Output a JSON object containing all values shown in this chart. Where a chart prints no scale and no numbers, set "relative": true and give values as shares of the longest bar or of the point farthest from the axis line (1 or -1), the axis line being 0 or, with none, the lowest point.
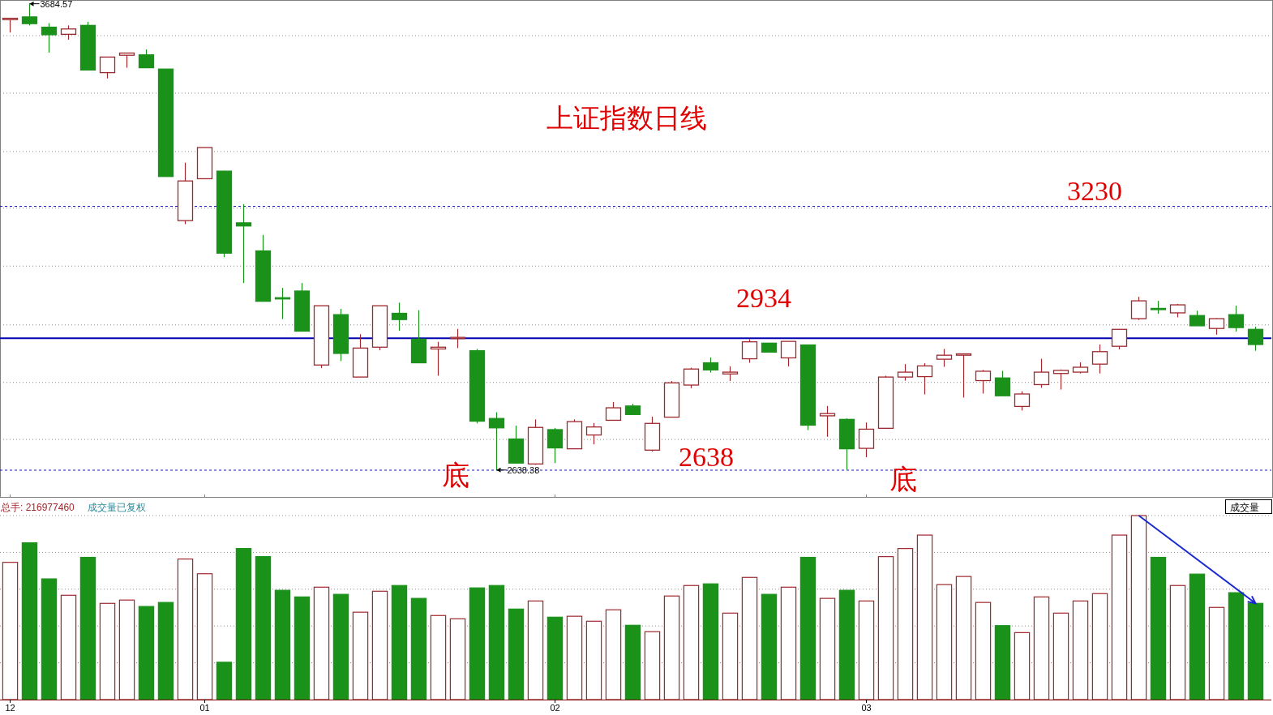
{
  "chart_data": [
    {
      "type": "candlestick",
      "title": "上证指数日线",
      "tick_labels": false,
      "grid": "y",
      "categories": [
        "12",
        null,
        null,
        null,
        null,
        null,
        null,
        null,
        null,
        null,
        "01",
        null,
        null,
        null,
        null,
        null,
        null,
        null,
        null,
        null,
        null,
        null,
        null,
        null,
        null,
        null,
        null,
        null,
        "02",
        null,
        null,
        null,
        null,
        null,
        null,
        null,
        null,
        null,
        null,
        null,
        null,
        null,
        null,
        null,
        "03",
        null,
        null,
        null,
        null,
        null,
        null,
        null,
        null,
        null,
        null,
        null,
        null,
        null,
        null,
        null,
        null,
        null,
        null,
        null,
        null
      ],
      "ohlc": [
        [
          3649,
          3653,
          3620,
          3652
        ],
        [
          3655,
          3684.57,
          3636,
          3640
        ],
        [
          3632,
          3641,
          3575,
          3615
        ],
        [
          3616,
          3636,
          3604,
          3628
        ],
        [
          3636,
          3644,
          3535,
          3536
        ],
        [
          3530,
          3565,
          3517,
          3565
        ],
        [
          3569,
          3574,
          3541,
          3574
        ],
        [
          3570,
          3582,
          3541,
          3541
        ],
        [
          3538,
          3538,
          3297,
          3297
        ],
        [
          3198,
          3328,
          3190,
          3287
        ],
        [
          3292,
          3362,
          3292,
          3362
        ],
        [
          3309,
          3309,
          3116,
          3125
        ],
        [
          3193,
          3235,
          3058,
          3186
        ],
        [
          3130,
          3166,
          3017,
          3017
        ],
        [
          3025,
          3047,
          2977,
          3024
        ],
        [
          3040,
          3058,
          2950,
          2950
        ],
        [
          2874,
          3007,
          2867,
          3007
        ],
        [
          2987,
          3000,
          2883,
          2900
        ],
        [
          2847,
          2943,
          2847,
          2912
        ],
        [
          2914,
          3007,
          2907,
          3007
        ],
        [
          2990,
          3014,
          2951,
          2976
        ],
        [
          2932,
          2997,
          2879,
          2879
        ],
        [
          2910,
          2926,
          2850,
          2914
        ],
        [
          2935,
          2955,
          2912,
          2936
        ],
        [
          2906,
          2910,
          2743,
          2748
        ],
        [
          2754,
          2768,
          2638.38,
          2733
        ],
        [
          2708,
          2738,
          2653,
          2654
        ],
        [
          2652,
          2752,
          2650,
          2734
        ],
        [
          2729,
          2733,
          2654,
          2688
        ],
        [
          2686,
          2752,
          2686,
          2747
        ],
        [
          2717,
          2744,
          2696,
          2735
        ],
        [
          2750,
          2791,
          2750,
          2778
        ],
        [
          2782,
          2787,
          2763,
          2763
        ],
        [
          2683,
          2758,
          2680,
          2743
        ],
        [
          2757,
          2838,
          2757,
          2834
        ],
        [
          2829,
          2868,
          2822,
          2865
        ],
        [
          2879,
          2891,
          2857,
          2863
        ],
        [
          2854,
          2871,
          2838,
          2858
        ],
        [
          2888,
          2932,
          2879,
          2926
        ],
        [
          2923,
          2923,
          2903,
          2903
        ],
        [
          2890,
          2927,
          2871,
          2927
        ],
        [
          2919,
          2919,
          2728,
          2739
        ],
        [
          2760,
          2782,
          2713,
          2765
        ],
        [
          2752,
          2754,
          2639,
          2686
        ],
        [
          2687,
          2745,
          2667,
          2730
        ],
        [
          2732,
          2850,
          2732,
          2847
        ],
        [
          2847,
          2876,
          2839,
          2858
        ],
        [
          2848,
          2878,
          2808,
          2872
        ],
        [
          2887,
          2910,
          2870,
          2896
        ],
        [
          2896,
          2900,
          2801,
          2899
        ],
        [
          2839,
          2863,
          2810,
          2860
        ],
        [
          2845,
          2861,
          2805,
          2805
        ],
        [
          2781,
          2815,
          2772,
          2809
        ],
        [
          2830,
          2888,
          2823,
          2858
        ],
        [
          2855,
          2864,
          2819,
          2862
        ],
        [
          2858,
          2880,
          2855,
          2869
        ],
        [
          2876,
          2920,
          2855,
          2904
        ],
        [
          2916,
          2954,
          2909,
          2954
        ],
        [
          2978,
          3027,
          2975,
          3018
        ],
        [
          3001,
          3018,
          2989,
          3000
        ],
        [
          2991,
          3011,
          2981,
          3009
        ],
        [
          2985,
          2996,
          2962,
          2962
        ],
        [
          2956,
          2979,
          2942,
          2978
        ],
        [
          2987,
          3007,
          2949,
          2958
        ],
        [
          2954,
          2960,
          2906,
          2920
        ]
      ],
      "colors": [
        "#a0282d",
        "#1a921a",
        "#1a921a",
        "#a0282d",
        "#1a921a",
        "#a0282d",
        "#a0282d",
        "#1a921a",
        "#1a921a",
        "#a0282d",
        "#a0282d",
        "#1a921a",
        "#1a921a",
        "#1a921a",
        "#1a921a",
        "#1a921a",
        "#a0282d",
        "#1a921a",
        "#a0282d",
        "#a0282d",
        "#1a921a",
        "#1a921a",
        "#a0282d",
        "#a0282d",
        "#1a921a",
        "#1a921a",
        "#1a921a",
        "#a0282d",
        "#1a921a",
        "#a0282d",
        "#a0282d",
        "#a0282d",
        "#1a921a",
        "#a0282d",
        "#a0282d",
        "#a0282d",
        "#1a921a",
        "#a0282d",
        "#a0282d",
        "#1a921a",
        "#a0282d",
        "#1a921a",
        "#a0282d",
        "#1a921a",
        "#a0282d",
        "#a0282d",
        "#a0282d",
        "#a0282d",
        "#a0282d",
        "#a0282d",
        "#a0282d",
        "#1a921a",
        "#a0282d",
        "#a0282d",
        "#a0282d",
        "#a0282d",
        "#a0282d",
        "#a0282d",
        "#a0282d",
        "#1a921a",
        "#a0282d",
        "#1a921a",
        "#a0282d",
        "#1a921a",
        "#1a921a"
      ],
      "ylim": [
        2578,
        3693
      ],
      "yticks": [
        {
          "value": 3613,
          "label": null
        },
        {
          "value": 3484,
          "label": null
        },
        {
          "value": 3353,
          "label": null
        },
        {
          "value": 3226,
          "label": null
        },
        {
          "value": 3096,
          "label": null
        },
        {
          "value": 2964,
          "label": null
        },
        {
          "value": 2835,
          "label": null
        },
        {
          "value": 2707,
          "label": null
        }
      ],
      "ref_lines": [
        {
          "axis": "y",
          "value": 3230,
          "label": "3230",
          "color": "#1c1ca8",
          "line_style": "dashed"
        },
        {
          "axis": "y",
          "value": 2934,
          "label": "2934",
          "color": "#0000b0",
          "line_style": "solid"
        },
        {
          "axis": "y",
          "value": 2638,
          "label": "2638",
          "color": "#1c1ca8",
          "line_style": "dashed"
        }
      ],
      "annotations": [
        "3684.57",
        "2638.38",
        "底",
        "底"
      ]
    },
    {
      "type": "bar",
      "relative": true,
      "grid": "y",
      "categories": [
        "12",
        null,
        null,
        null,
        null,
        null,
        null,
        null,
        null,
        null,
        "01",
        null,
        null,
        null,
        null,
        null,
        null,
        null,
        null,
        null,
        null,
        null,
        null,
        null,
        null,
        null,
        null,
        null,
        "02",
        null,
        null,
        null,
        null,
        null,
        null,
        null,
        null,
        null,
        null,
        null,
        null,
        null,
        null,
        null,
        "03",
        null,
        null,
        null,
        null,
        null,
        null,
        null,
        null,
        null,
        null,
        null,
        null,
        null,
        null,
        null,
        null,
        null,
        null,
        null,
        null
      ],
      "series": [
        {
          "color": "#a0282d",
          "values": [
            0.746,
            null,
            null,
            0.567,
            null,
            0.523,
            0.541,
            null,
            null,
            0.764,
            0.684,
            null,
            null,
            null,
            null,
            null,
            0.611,
            null,
            0.475,
            0.589,
            null,
            null,
            0.457,
            0.439,
            null,
            null,
            null,
            0.536,
            null,
            0.453,
            0.426,
            0.488,
            null,
            0.369,
            0.563,
            0.62,
            null,
            0.47,
            0.664,
            null,
            0.611,
            null,
            0.55,
            null,
            0.536,
            0.777,
            0.821,
            0.894,
            0.625,
            0.669,
            0.528,
            null,
            0.364,
            0.558,
            0.47,
            0.536,
            0.576,
            0.894,
            1,
            null,
            0.62,
            null,
            0.501,
            null,
            null
          ]
        },
        {
          "color": "#1a921a",
          "values": [
            null,
            0.852,
            0.656,
            null,
            0.773,
            null,
            null,
            0.506,
            0.528,
            null,
            null,
            0.203,
            0.821,
            0.777,
            0.594,
            0.558,
            null,
            0.572,
            null,
            null,
            0.62,
            0.55,
            null,
            null,
            0.607,
            0.62,
            0.492,
            null,
            0.448,
            null,
            null,
            null,
            0.404,
            null,
            null,
            null,
            0.629,
            null,
            null,
            0.572,
            null,
            0.773,
            null,
            0.594,
            null,
            null,
            null,
            null,
            null,
            null,
            null,
            0.402,
            null,
            null,
            null,
            null,
            null,
            null,
            null,
            0.773,
            null,
            0.682,
            null,
            0.581,
            0.523
          ]
        }
      ],
      "annotations": [
        "总手: 216977460",
        "成交量已复权",
        "成交量"
      ]
    }
  ]
}
